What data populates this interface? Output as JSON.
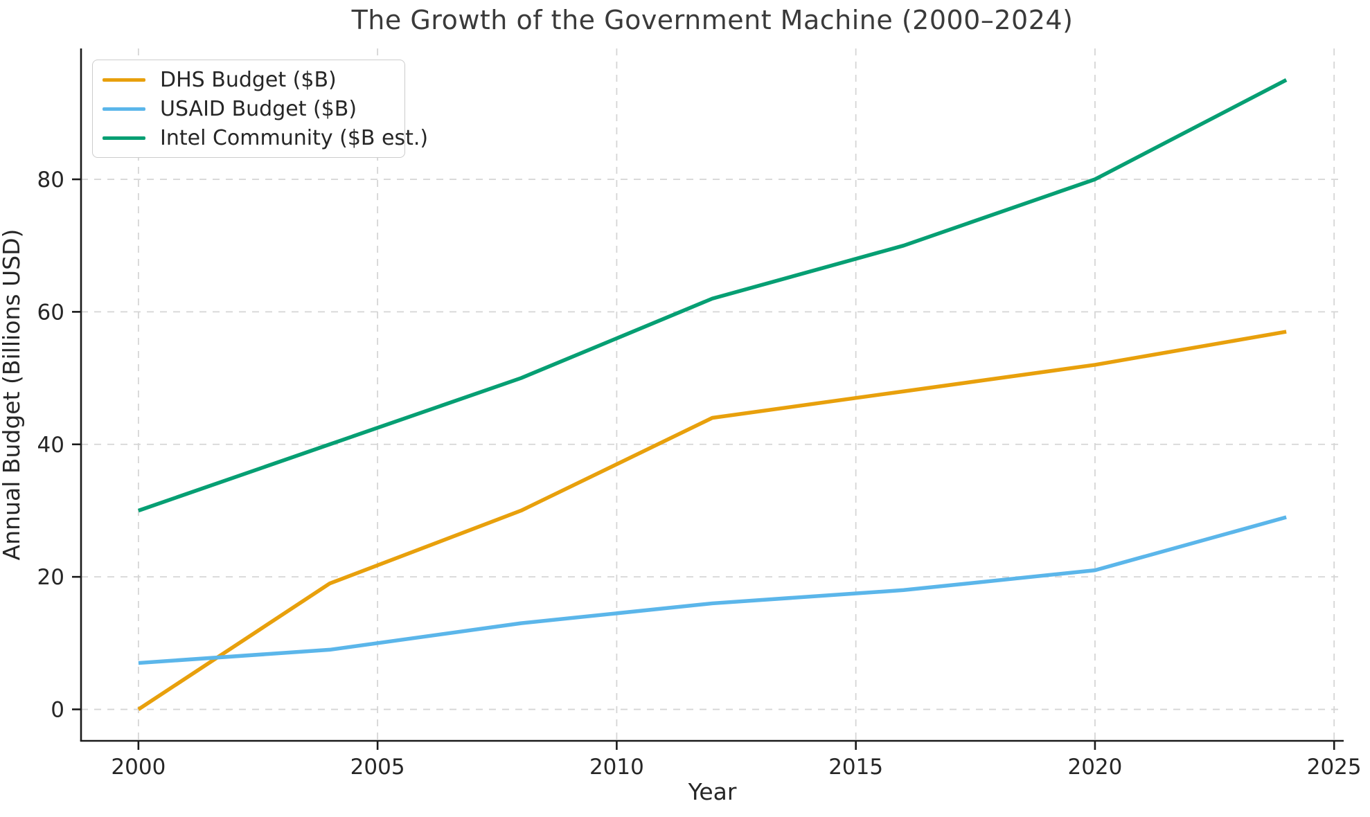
{
  "chart_data": {
    "type": "line",
    "title": "The Growth of the Government Machine (2000–2024)",
    "xlabel": "Year",
    "ylabel": "Annual Budget (Billions USD)",
    "x": [
      2000,
      2004,
      2008,
      2012,
      2016,
      2020,
      2024
    ],
    "series": [
      {
        "name": "DHS Budget ($B)",
        "color": "#E8A00C",
        "values": [
          0,
          19,
          30,
          44,
          48,
          52,
          57
        ]
      },
      {
        "name": "USAID Budget ($B)",
        "color": "#5BB6EA",
        "values": [
          7,
          9,
          13,
          16,
          18,
          21,
          29
        ]
      },
      {
        "name": "Intel Community ($B est.)",
        "color": "#069F73",
        "values": [
          30,
          40,
          50,
          62,
          70,
          80,
          95
        ]
      }
    ],
    "xticks": [
      2000,
      2005,
      2010,
      2015,
      2020,
      2025
    ],
    "yticks": [
      0,
      20,
      40,
      60,
      80
    ],
    "xlim": [
      1998.8,
      2025.2
    ],
    "ylim": [
      -4.75,
      99.75
    ],
    "grid": true,
    "grid_style": "dashed",
    "legend_position": "upper left"
  },
  "style_colors": {
    "grid": "#d5d5d5",
    "spine": "#1a1a1a",
    "tick_text": "#262626"
  }
}
